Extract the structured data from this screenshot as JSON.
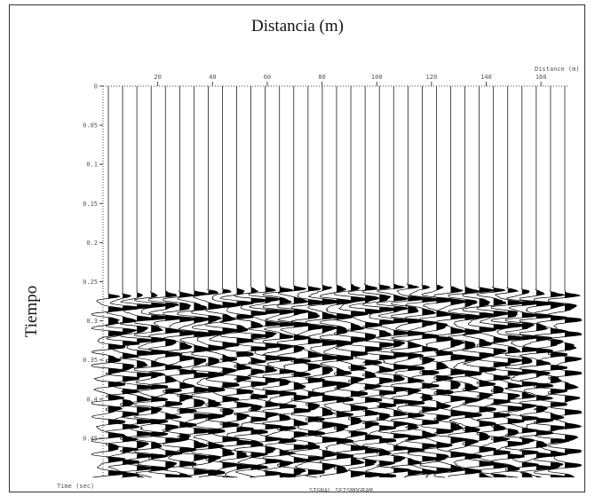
{
  "chart_data": {
    "type": "seismogram",
    "title": "",
    "xlabel": "Distancia (m)",
    "ylabel": "Tiempo",
    "inner_x_axis_label": "Distance (m)",
    "inner_y_axis_label": "Time (sec)",
    "bottom_caption": "SIGNAL SEISMOGRAM",
    "x_ticks": [
      20,
      40,
      60,
      80,
      100,
      120,
      140,
      160
    ],
    "xlim": [
      0,
      170
    ],
    "y_ticks": [
      "0",
      "0.05",
      "0.1",
      "0.15",
      "0.2",
      "0.25",
      "0.3",
      "0.35",
      "0.4",
      "0.45"
    ],
    "ylim": [
      0,
      0.5
    ],
    "y_inverted": true,
    "trace_count": 33,
    "first_arrival_times_s": [
      0.265,
      0.265,
      0.264,
      0.263,
      0.262,
      0.262,
      0.261,
      0.26,
      0.259,
      0.258,
      0.257,
      0.256,
      0.256,
      0.255,
      0.255,
      0.254,
      0.254,
      0.253,
      0.253,
      0.253,
      0.253,
      0.253,
      0.254,
      0.254,
      0.255,
      0.256,
      0.256,
      0.257,
      0.258,
      0.259,
      0.26,
      0.261,
      0.262
    ],
    "grid": false,
    "trace_color": "#000000"
  }
}
